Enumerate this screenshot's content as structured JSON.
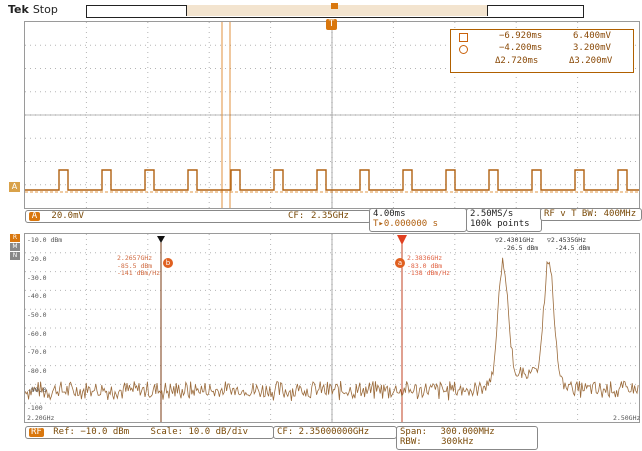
{
  "header": {
    "brand": "Tek",
    "status": "Stop",
    "trigger_marker": "T"
  },
  "time_domain": {
    "channel_marker": "A",
    "cursor_readout": {
      "row1": {
        "a": "−6.920ms",
        "b": "6.400mV"
      },
      "row2": {
        "a": "−4.200ms",
        "b": "3.200mV"
      },
      "row3": {
        "a": "Δ2.720ms",
        "b": "Δ3.200mV"
      }
    },
    "scale_box": {
      "channel": "A",
      "value": "20.0mV",
      "cf_label": "CF:",
      "cf_value": "2.35GHz"
    },
    "timebase": {
      "value": "4.00ms",
      "trigger": "T▸0.000000 s"
    },
    "sample": {
      "rate": "2.50MS/s",
      "points": "100k points"
    },
    "rf_vt": "RF v T BW: 400MHz"
  },
  "spectrum": {
    "side_labels": {
      "r": "R",
      "m": "M",
      "n": "N"
    },
    "y_ticks": [
      "-10.0 dBm",
      "-20.0",
      "-30.0",
      "-40.0",
      "-50.0",
      "-60.0",
      "-70.0",
      "-80.0",
      "-90.0",
      "-100"
    ],
    "x_start": "2.20GHz",
    "x_end": "2.50GHz",
    "markers": [
      {
        "id": "b",
        "freq": "2.2657GHz",
        "level": "-85.5 dBm",
        "density": "-141 dBm/Hz"
      },
      {
        "id": "a",
        "freq": "2.3836GHz",
        "level": "-83.0 dBm",
        "density": "-138 dBm/Hz"
      }
    ],
    "peak1": {
      "freq": "▽2.4301GHz",
      "level": "-26.5 dBm"
    },
    "peak2": {
      "freq": "▽2.4535GHz",
      "level": "-24.5 dBm"
    },
    "footer": {
      "rf": "RF",
      "ref": "Ref: −10.0 dBm",
      "scale": "Scale: 10.0 dB/div",
      "cf": "CF: 2.35000000GHz",
      "span_label": "Span:",
      "span": "300.000MHz",
      "rbw_label": "RBW:",
      "rbw": "300kHz"
    }
  },
  "colors": {
    "trace": "#b06010",
    "trace_spec": "#9a6a3a",
    "accent": "#d9770e",
    "marker_red": "#e04020",
    "grid": "#b5b5b5"
  }
}
